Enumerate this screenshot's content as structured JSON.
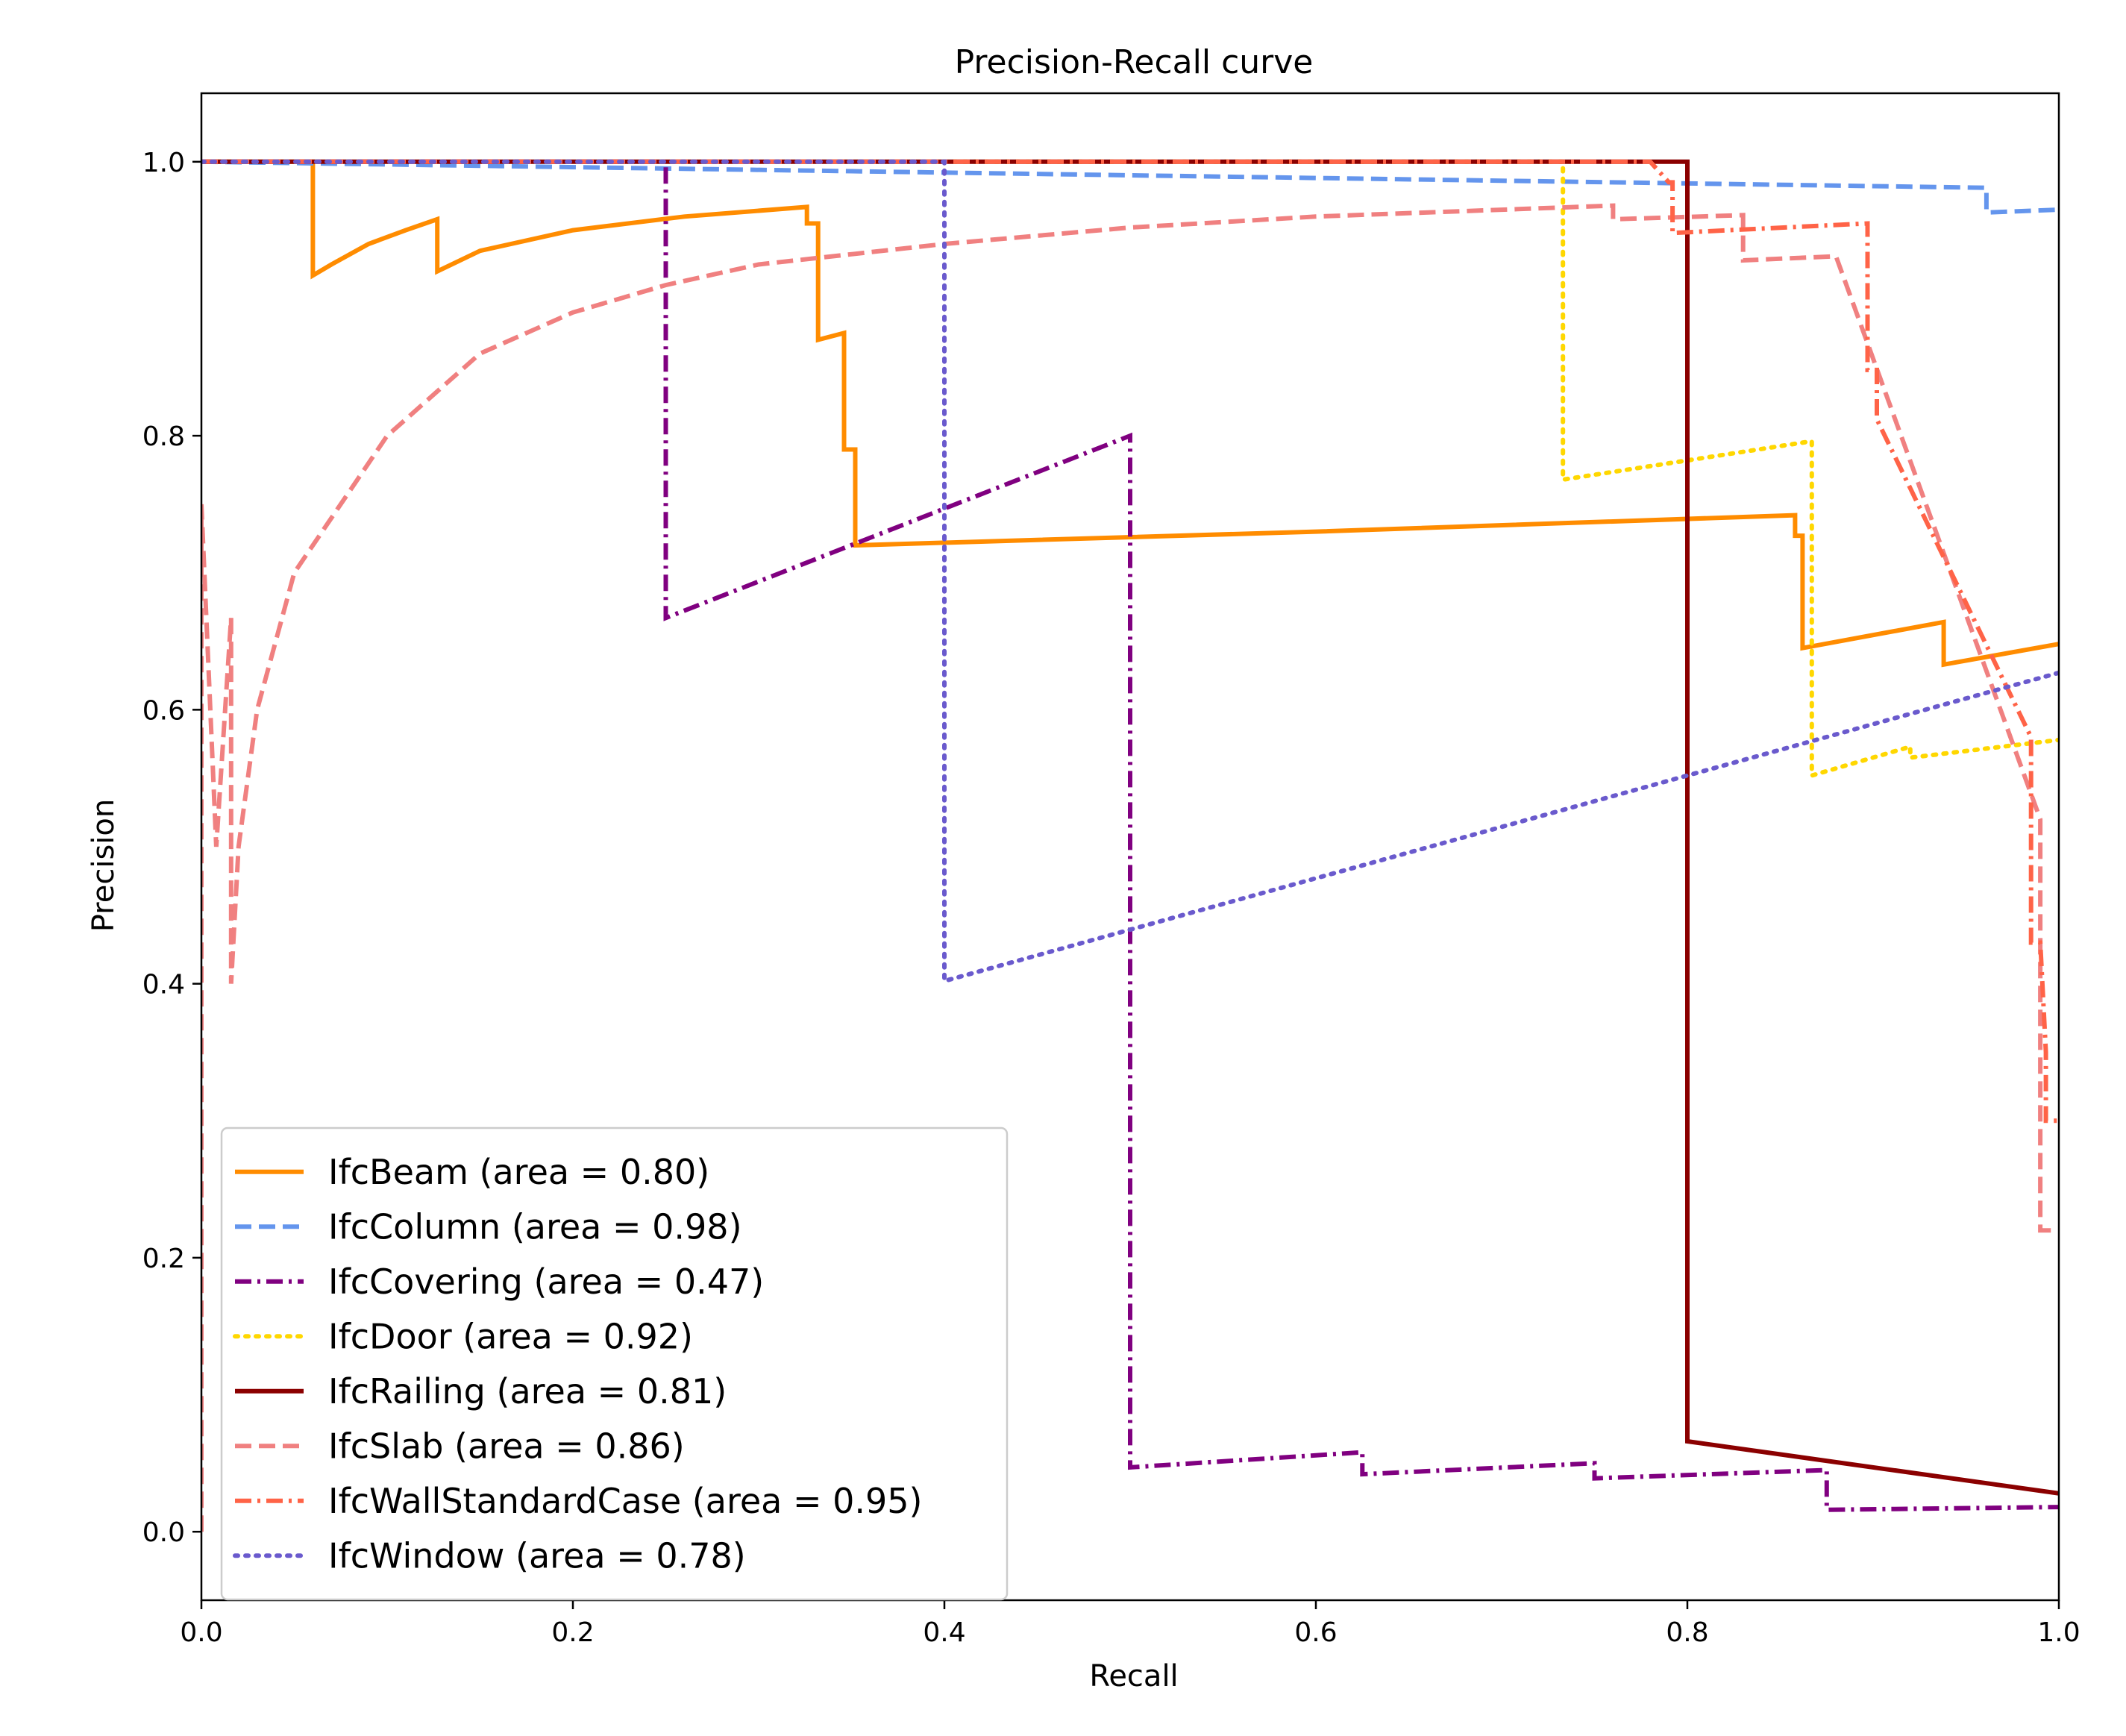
{
  "chart_data": {
    "type": "line",
    "title": "Precision-Recall curve",
    "xlabel": "Recall",
    "ylabel": "Precision",
    "xlim": [
      0.0,
      1.0
    ],
    "ylim": [
      -0.05,
      1.05
    ],
    "xticks": [
      "0.0",
      "0.2",
      "0.4",
      "0.6",
      "0.8",
      "1.0"
    ],
    "yticks": [
      "0.0",
      "0.2",
      "0.4",
      "0.6",
      "0.8",
      "1.0"
    ],
    "xtick_values": [
      0.0,
      0.2,
      0.4,
      0.6,
      0.8,
      1.0
    ],
    "ytick_values": [
      0.0,
      0.2,
      0.4,
      0.6,
      0.8,
      1.0
    ],
    "grid": false,
    "legend_position": "lower-left",
    "series": [
      {
        "name": "IfcBeam (area = 0.80)",
        "color": "#ff8c00",
        "dash": "solid",
        "points": [
          [
            0,
            1.0
          ],
          [
            0.06,
            1.0
          ],
          [
            0.06,
            0.917
          ],
          [
            0.07,
            0.925
          ],
          [
            0.09,
            0.94
          ],
          [
            0.11,
            0.95
          ],
          [
            0.127,
            0.958
          ],
          [
            0.127,
            0.92
          ],
          [
            0.15,
            0.935
          ],
          [
            0.2,
            0.95
          ],
          [
            0.26,
            0.96
          ],
          [
            0.326,
            0.967
          ],
          [
            0.326,
            0.955
          ],
          [
            0.332,
            0.955
          ],
          [
            0.332,
            0.87
          ],
          [
            0.346,
            0.875
          ],
          [
            0.346,
            0.79
          ],
          [
            0.352,
            0.79
          ],
          [
            0.352,
            0.72
          ],
          [
            0.6,
            0.73
          ],
          [
            0.858,
            0.742
          ],
          [
            0.858,
            0.727
          ],
          [
            0.862,
            0.727
          ],
          [
            0.862,
            0.645
          ],
          [
            0.938,
            0.664
          ],
          [
            0.938,
            0.633
          ],
          [
            1.0,
            0.648
          ]
        ]
      },
      {
        "name": "IfcColumn (area = 0.98)",
        "color": "#6495ed",
        "dash": "dashed",
        "points": [
          [
            0,
            1.0
          ],
          [
            0.961,
            0.981
          ],
          [
            0.961,
            0.963
          ],
          [
            1.0,
            0.965
          ]
        ]
      },
      {
        "name": "IfcCovering (area = 0.47)",
        "color": "#800080",
        "dash": "dashdot",
        "points": [
          [
            0,
            1.0
          ],
          [
            0.25,
            1.0
          ],
          [
            0.25,
            0.667
          ],
          [
            0.5,
            0.8
          ],
          [
            0.5,
            0.047
          ],
          [
            0.625,
            0.058
          ],
          [
            0.625,
            0.042
          ],
          [
            0.75,
            0.05
          ],
          [
            0.75,
            0.039
          ],
          [
            0.875,
            0.045
          ],
          [
            0.875,
            0.016
          ],
          [
            1.0,
            0.018
          ]
        ]
      },
      {
        "name": "IfcDoor (area = 0.92)",
        "color": "#ffd700",
        "dash": "dotted",
        "points": [
          [
            0,
            1.0
          ],
          [
            0.733,
            1.0
          ],
          [
            0.733,
            0.768
          ],
          [
            0.867,
            0.796
          ],
          [
            0.867,
            0.552
          ],
          [
            0.92,
            0.573
          ],
          [
            0.92,
            0.565
          ],
          [
            1.0,
            0.578
          ]
        ]
      },
      {
        "name": "IfcRailing (area = 0.81)",
        "color": "#8b0000",
        "dash": "solid",
        "points": [
          [
            0,
            1.0
          ],
          [
            0.8,
            1.0
          ],
          [
            0.8,
            0.066
          ],
          [
            1.0,
            0.028
          ]
        ]
      },
      {
        "name": "IfcSlab (area = 0.86)",
        "color": "#f08080",
        "dash": "dashed",
        "points": [
          [
            0,
            0.0
          ],
          [
            0,
            0.75
          ],
          [
            0.008,
            0.5
          ],
          [
            0.016,
            0.667
          ],
          [
            0.016,
            0.4
          ],
          [
            0.02,
            0.5
          ],
          [
            0.03,
            0.6
          ],
          [
            0.05,
            0.7
          ],
          [
            0.1,
            0.8
          ],
          [
            0.15,
            0.86
          ],
          [
            0.2,
            0.89
          ],
          [
            0.25,
            0.91
          ],
          [
            0.3,
            0.925
          ],
          [
            0.4,
            0.94
          ],
          [
            0.5,
            0.952
          ],
          [
            0.6,
            0.96
          ],
          [
            0.76,
            0.968
          ],
          [
            0.76,
            0.958
          ],
          [
            0.83,
            0.961
          ],
          [
            0.83,
            0.928
          ],
          [
            0.88,
            0.931
          ],
          [
            0.99,
            0.52
          ],
          [
            0.99,
            0.22
          ],
          [
            1.0,
            0.22
          ]
        ]
      },
      {
        "name": "IfcWallStandardCase (area = 0.95)",
        "color": "#ff6347",
        "dash": "dashdot",
        "points": [
          [
            0,
            1.0
          ],
          [
            0.78,
            1.0
          ],
          [
            0.79,
            0.985
          ],
          [
            0.792,
            0.985
          ],
          [
            0.792,
            0.948
          ],
          [
            0.897,
            0.955
          ],
          [
            0.897,
            0.848
          ],
          [
            0.902,
            0.848
          ],
          [
            0.902,
            0.812
          ],
          [
            0.985,
            0.58
          ],
          [
            0.985,
            0.43
          ],
          [
            0.99,
            0.43
          ],
          [
            0.993,
            0.35
          ],
          [
            0.993,
            0.3
          ],
          [
            1.0,
            0.3
          ]
        ]
      },
      {
        "name": "IfcWindow (area = 0.78)",
        "color": "#6a5acd",
        "dash": "dotted",
        "points": [
          [
            0,
            1.0
          ],
          [
            0.4,
            1.0
          ],
          [
            0.4,
            0.402
          ],
          [
            1.0,
            0.627
          ]
        ]
      }
    ]
  }
}
